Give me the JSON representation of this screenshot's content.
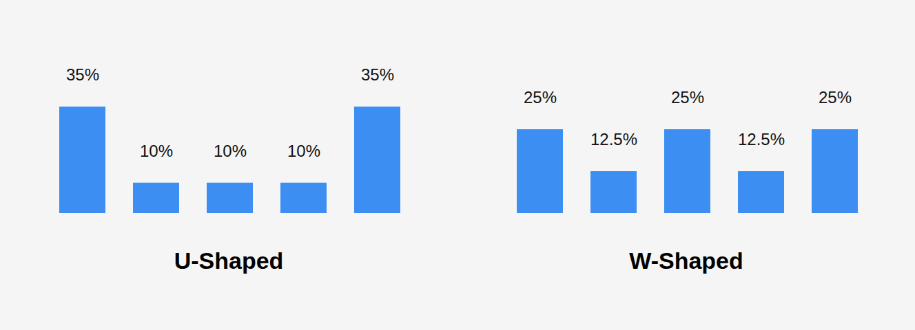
{
  "chart_data": [
    {
      "type": "bar",
      "title": "U-Shaped",
      "categories": [
        null,
        null,
        null,
        null,
        null
      ],
      "values": [
        35,
        10,
        10,
        10,
        35
      ],
      "value_labels": [
        "35%",
        "10%",
        "10%",
        "10%",
        "35%"
      ],
      "color": "#3d8ef2",
      "ylim": [
        0,
        35
      ],
      "data_labels": true,
      "tick_labels": false,
      "grid": false
    },
    {
      "type": "bar",
      "title": "W-Shaped",
      "categories": [
        null,
        null,
        null,
        null,
        null
      ],
      "values": [
        25,
        12.5,
        25,
        12.5,
        25
      ],
      "value_labels": [
        "25%",
        "12.5%",
        "25%",
        "12.5%",
        "25%"
      ],
      "color": "#3d8ef2",
      "ylim": [
        0,
        25
      ],
      "data_labels": true,
      "tick_labels": false,
      "grid": false
    }
  ]
}
